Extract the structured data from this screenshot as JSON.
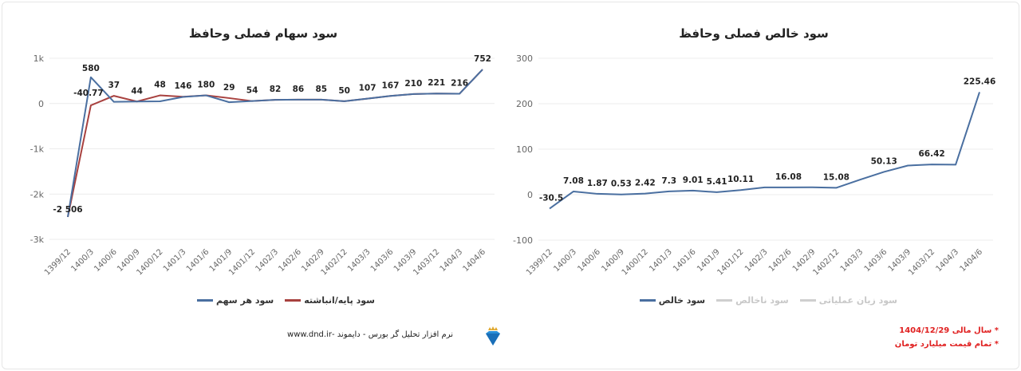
{
  "colors": {
    "blue": "#4a6fa0",
    "red": "#a8413f",
    "grid": "#ececec",
    "dim": "#cfcfcf",
    "note": "#e02020"
  },
  "chart_data": [
    {
      "type": "line",
      "title": "سود سهام فصلی وحافظ",
      "categories": [
        "1399/12",
        "1400/3",
        "1400/6",
        "1400/9",
        "1400/12",
        "1401/3",
        "1401/6",
        "1401/9",
        "1401/12",
        "1402/3",
        "1402/6",
        "1402/9",
        "1402/12",
        "1403/3",
        "1403/6",
        "1403/9",
        "1403/12",
        "1404/3",
        "1404/6"
      ],
      "yticks": [
        {
          "v": 1000,
          "label": "1k"
        },
        {
          "v": 0,
          "label": "0"
        },
        {
          "v": -1000,
          "label": "-1k"
        },
        {
          "v": -2000,
          "label": "-2k"
        },
        {
          "v": -3000,
          "label": "-3k"
        }
      ],
      "ylim": [
        -3000,
        1000
      ],
      "grid": true,
      "legend": "bottom",
      "series": [
        {
          "name": "سود هر سهم",
          "color": "#4a6fa0",
          "values": [
            -2506,
            580,
            37,
            44,
            48,
            146,
            180,
            29,
            54,
            82,
            86,
            85,
            50,
            107,
            167,
            210,
            221,
            216,
            752
          ],
          "labels": [
            "-2 506",
            "580",
            "37",
            "44",
            "48",
            "146",
            "180",
            "29",
            "54",
            "82",
            "86",
            "85",
            "50",
            "107",
            "167",
            "210",
            "221",
            "216",
            "752"
          ]
        },
        {
          "name": "سود پایه/انباشته",
          "color": "#a8413f",
          "values": [
            -2506,
            -40.77,
            170,
            44,
            180,
            150,
            180,
            120,
            54,
            82,
            86,
            85,
            50,
            107,
            167,
            210,
            221,
            216,
            752
          ],
          "labels": [
            null,
            "-40.77",
            null,
            null,
            null,
            null,
            null,
            null,
            null,
            null,
            null,
            null,
            null,
            null,
            null,
            null,
            null,
            null,
            null
          ]
        }
      ]
    },
    {
      "type": "line",
      "title": "سود خالص فصلی وحافظ",
      "categories": [
        "1399/12",
        "1400/3",
        "1400/6",
        "1400/9",
        "1400/12",
        "1401/3",
        "1401/6",
        "1401/9",
        "1401/12",
        "1402/3",
        "1402/6",
        "1402/9",
        "1402/12",
        "1403/3",
        "1403/6",
        "1403/9",
        "1403/12",
        "1404/3",
        "1404/6"
      ],
      "yticks": [
        {
          "v": 300,
          "label": "300"
        },
        {
          "v": 200,
          "label": "200"
        },
        {
          "v": 100,
          "label": "100"
        },
        {
          "v": 0,
          "label": "0"
        },
        {
          "v": -100,
          "label": "-100"
        }
      ],
      "ylim": [
        -100,
        300
      ],
      "grid": true,
      "legend": "bottom",
      "series": [
        {
          "name": "سود خالص",
          "color": "#4a6fa0",
          "values": [
            -30.5,
            7.08,
            1.87,
            0.53,
            2.42,
            7.3,
            9.01,
            5.41,
            10.11,
            16,
            16.08,
            16.2,
            15.08,
            33,
            50.13,
            64,
            66.42,
            66,
            225.46
          ],
          "labels": [
            "-30.5",
            "7.08",
            "1.87",
            "0.53",
            "2.42",
            "7.3",
            "9.01",
            "5.41",
            "10.11",
            null,
            "16.08",
            null,
            "15.08",
            null,
            "50.13",
            null,
            "66.42",
            null,
            "225.46"
          ]
        }
      ],
      "hidden_series": [
        "سود ناخالص",
        "سود زیان عملیاتی"
      ]
    }
  ],
  "legend_left": [
    "سود پایه/انباشته",
    "سود هر سهم"
  ],
  "legend_right": [
    "سود خالص",
    "سود ناخالص",
    "سود زیان عملیاتی"
  ],
  "footer": {
    "text": "نرم افزار تحلیل گر بورس - دایموند -www.dnd.ir",
    "logo": "diamond-crown-logo"
  },
  "notes": [
    "* سال مالی 1404/12/29",
    "* تمام قیمت میلیارد تومان"
  ]
}
